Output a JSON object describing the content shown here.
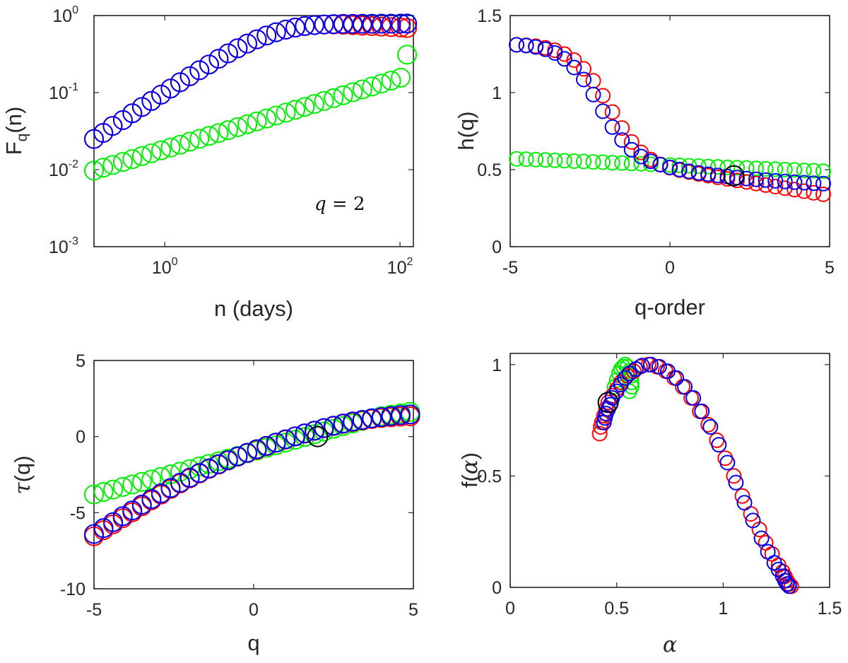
{
  "chart_data": [
    {
      "id": "fq",
      "type": "scatter",
      "xscale": "log",
      "yscale": "log",
      "xlim": [
        0.25,
        130
      ],
      "ylim": [
        0.001,
        1
      ],
      "xticks": [
        1,
        100
      ],
      "xtick_labels": [
        {
          "base": "10",
          "exp": "0"
        },
        {
          "base": "10",
          "exp": "2"
        }
      ],
      "yticks": [
        0.001,
        0.01,
        0.1,
        1
      ],
      "ytick_labels": [
        {
          "base": "10",
          "exp": "-3"
        },
        {
          "base": "10",
          "exp": "-2"
        },
        {
          "base": "10",
          "exp": "-1"
        },
        {
          "base": "10",
          "exp": "0"
        }
      ],
      "xlabel": "n (days)",
      "ylabel": {
        "main": "F",
        "sub": "q",
        "rest": "(n)"
      },
      "annotation": {
        "lhs": "q",
        "rhs": "= 2",
        "position": "bottom-right"
      },
      "series": [
        {
          "name": "green",
          "color": "#00ee00",
          "x": [
            0.25,
            0.3,
            0.36,
            0.44,
            0.53,
            0.64,
            0.77,
            0.93,
            1.12,
            1.35,
            1.63,
            1.97,
            2.38,
            2.87,
            3.46,
            4.17,
            5.03,
            6.07,
            7.33,
            8.84,
            10.7,
            12.9,
            15.5,
            18.7,
            22.6,
            27.3,
            32.9,
            39.7,
            47.9,
            57.8,
            69.7,
            84.1,
            101.5,
            115
          ],
          "y": [
            0.0097,
            0.0106,
            0.0115,
            0.0126,
            0.0137,
            0.015,
            0.0163,
            0.0178,
            0.0194,
            0.0211,
            0.0231,
            0.0251,
            0.0274,
            0.0299,
            0.0326,
            0.0356,
            0.0388,
            0.0423,
            0.0461,
            0.0503,
            0.0549,
            0.0599,
            0.0653,
            0.0712,
            0.0777,
            0.0847,
            0.0924,
            0.101,
            0.11,
            0.12,
            0.131,
            0.143,
            0.156,
            0.31
          ]
        },
        {
          "name": "red",
          "color": "#ff0000",
          "x": [
            0.25,
            0.3,
            0.36,
            0.44,
            0.53,
            0.64,
            0.77,
            0.93,
            1.12,
            1.35,
            1.63,
            1.97,
            2.38,
            2.87,
            3.46,
            4.17,
            5.03,
            6.07,
            7.33,
            8.84,
            10.7,
            12.9,
            15.5,
            18.7,
            22.6,
            27.3,
            32.9,
            39.7,
            47.9,
            57.8,
            69.7,
            84.1,
            101.5,
            115
          ],
          "y": [
            0.025,
            0.03,
            0.037,
            0.044,
            0.054,
            0.065,
            0.078,
            0.094,
            0.113,
            0.136,
            0.163,
            0.195,
            0.232,
            0.275,
            0.323,
            0.376,
            0.433,
            0.492,
            0.551,
            0.607,
            0.657,
            0.699,
            0.731,
            0.752,
            0.764,
            0.766,
            0.76,
            0.75,
            0.74,
            0.73,
            0.72,
            0.71,
            0.7,
            0.69
          ]
        },
        {
          "name": "blue",
          "color": "#0000ee",
          "x": [
            0.25,
            0.3,
            0.36,
            0.44,
            0.53,
            0.64,
            0.77,
            0.93,
            1.12,
            1.35,
            1.63,
            1.97,
            2.38,
            2.87,
            3.46,
            4.17,
            5.03,
            6.07,
            7.33,
            8.84,
            10.7,
            12.9,
            15.5,
            18.7,
            22.6,
            27.3,
            32.9,
            39.7,
            47.9,
            57.8,
            69.7,
            84.1,
            101.5,
            115
          ],
          "y": [
            0.025,
            0.03,
            0.037,
            0.044,
            0.054,
            0.065,
            0.078,
            0.094,
            0.113,
            0.136,
            0.163,
            0.195,
            0.232,
            0.275,
            0.323,
            0.376,
            0.433,
            0.492,
            0.551,
            0.607,
            0.657,
            0.699,
            0.731,
            0.752,
            0.767,
            0.775,
            0.779,
            0.781,
            0.782,
            0.783,
            0.784,
            0.785,
            0.786,
            0.787
          ]
        }
      ]
    },
    {
      "id": "hq",
      "type": "scatter",
      "xlim": [
        -5,
        5
      ],
      "ylim": [
        0,
        1.5
      ],
      "xticks": [
        -5,
        0,
        5
      ],
      "xtick_labels": [
        "-5",
        "0",
        "5"
      ],
      "yticks": [
        0,
        0.5,
        1,
        1.5
      ],
      "ytick_labels": [
        "0",
        "0.5",
        "1",
        "1.5"
      ],
      "xlabel": "q-order",
      "ylabel": "h(q)",
      "series": [
        {
          "name": "green",
          "color": "#00ee00",
          "x": [
            -4.8,
            -4.5,
            -4.2,
            -3.9,
            -3.6,
            -3.3,
            -3.0,
            -2.7,
            -2.4,
            -2.1,
            -1.8,
            -1.5,
            -1.2,
            -0.9,
            -0.6,
            -0.3,
            0.0,
            0.3,
            0.6,
            0.9,
            1.2,
            1.5,
            1.8,
            2.1,
            2.4,
            2.7,
            3.0,
            3.3,
            3.6,
            3.9,
            4.2,
            4.5,
            4.8
          ],
          "y": [
            0.57,
            0.568,
            0.565,
            0.563,
            0.56,
            0.558,
            0.555,
            0.553,
            0.55,
            0.548,
            0.545,
            0.543,
            0.54,
            0.538,
            0.535,
            0.533,
            0.53,
            0.528,
            0.525,
            0.523,
            0.52,
            0.518,
            0.515,
            0.513,
            0.51,
            0.508,
            0.505,
            0.503,
            0.5,
            0.498,
            0.495,
            0.493,
            0.49
          ]
        },
        {
          "name": "red",
          "color": "#ff0000",
          "x": [
            -4.8,
            -4.5,
            -4.2,
            -3.9,
            -3.6,
            -3.3,
            -3.0,
            -2.7,
            -2.4,
            -2.1,
            -1.8,
            -1.5,
            -1.2,
            -0.9,
            -0.6,
            -0.3,
            0.0,
            0.3,
            0.6,
            0.9,
            1.2,
            1.5,
            1.8,
            2.1,
            2.4,
            2.7,
            3.0,
            3.3,
            3.6,
            3.9,
            4.2,
            4.5,
            4.8
          ],
          "y": [
            1.31,
            1.307,
            1.301,
            1.291,
            1.275,
            1.25,
            1.211,
            1.154,
            1.077,
            0.98,
            0.874,
            0.77,
            0.68,
            0.612,
            0.565,
            0.534,
            0.513,
            0.497,
            0.484,
            0.472,
            0.461,
            0.45,
            0.44,
            0.43,
            0.42,
            0.41,
            0.4,
            0.39,
            0.38,
            0.37,
            0.36,
            0.35,
            0.34
          ]
        },
        {
          "name": "blue",
          "color": "#0000ee",
          "x": [
            -4.8,
            -4.5,
            -4.2,
            -3.9,
            -3.6,
            -3.3,
            -3.0,
            -2.7,
            -2.4,
            -2.1,
            -1.8,
            -1.5,
            -1.2,
            -0.9,
            -0.6,
            -0.3,
            0.0,
            0.3,
            0.6,
            0.9,
            1.2,
            1.5,
            1.8,
            2.1,
            2.4,
            2.7,
            3.0,
            3.3,
            3.6,
            3.9,
            4.2,
            4.5,
            4.8
          ],
          "y": [
            1.31,
            1.305,
            1.296,
            1.281,
            1.257,
            1.219,
            1.163,
            1.085,
            0.987,
            0.879,
            0.776,
            0.692,
            0.629,
            0.585,
            0.554,
            0.532,
            0.515,
            0.501,
            0.489,
            0.479,
            0.47,
            0.462,
            0.455,
            0.448,
            0.442,
            0.437,
            0.432,
            0.427,
            0.423,
            0.419,
            0.415,
            0.412,
            0.409
          ]
        },
        {
          "name": "marker",
          "color": "#000000",
          "x": [
            2
          ],
          "y": [
            0.46
          ]
        }
      ]
    },
    {
      "id": "tau",
      "type": "scatter",
      "xlim": [
        -5,
        5
      ],
      "ylim": [
        -10,
        5
      ],
      "xticks": [
        -5,
        0,
        5
      ],
      "xtick_labels": [
        "-5",
        "0",
        "5"
      ],
      "yticks": [
        -10,
        -5,
        0,
        5
      ],
      "ytick_labels": [
        "-10",
        "-5",
        "0",
        "5"
      ],
      "xlabel": "q",
      "ylabel": {
        "greek": "τ",
        "rest": "(q)"
      },
      "series": [
        {
          "name": "green",
          "color": "#00ee00",
          "x": [
            -5.0,
            -4.7,
            -4.4,
            -4.1,
            -3.8,
            -3.5,
            -3.2,
            -2.9,
            -2.6,
            -2.3,
            -2.0,
            -1.7,
            -1.4,
            -1.1,
            -0.8,
            -0.5,
            -0.2,
            0.1,
            0.4,
            0.7,
            1.0,
            1.3,
            1.6,
            1.9,
            2.2,
            2.5,
            2.8,
            3.1,
            3.4,
            3.7,
            4.0,
            4.3,
            4.6,
            4.9
          ],
          "y": [
            -3.8,
            -3.64,
            -3.48,
            -3.31,
            -3.15,
            -2.98,
            -2.82,
            -2.65,
            -2.48,
            -2.31,
            -2.14,
            -1.96,
            -1.79,
            -1.62,
            -1.45,
            -1.27,
            -1.1,
            -0.92,
            -0.74,
            -0.57,
            -0.39,
            -0.21,
            -0.03,
            0.15,
            0.33,
            0.51,
            0.69,
            0.86,
            1.03,
            1.2,
            1.34,
            1.44,
            1.53,
            1.62
          ]
        },
        {
          "name": "red",
          "color": "#ff0000",
          "x": [
            -5.0,
            -4.7,
            -4.4,
            -4.1,
            -3.8,
            -3.5,
            -3.2,
            -2.9,
            -2.6,
            -2.3,
            -2.0,
            -1.7,
            -1.4,
            -1.1,
            -0.8,
            -0.5,
            -0.2,
            0.1,
            0.4,
            0.7,
            1.0,
            1.3,
            1.6,
            1.9,
            2.2,
            2.5,
            2.8,
            3.1,
            3.4,
            3.7,
            4.0,
            4.3,
            4.6,
            4.9
          ],
          "y": [
            -6.55,
            -6.15,
            -5.76,
            -5.36,
            -4.97,
            -4.58,
            -4.19,
            -3.81,
            -3.44,
            -3.08,
            -2.74,
            -2.42,
            -2.12,
            -1.84,
            -1.57,
            -1.32,
            -1.08,
            -0.86,
            -0.63,
            -0.41,
            -0.2,
            0.01,
            0.2,
            0.38,
            0.55,
            0.7,
            0.84,
            0.96,
            1.06,
            1.15,
            1.22,
            1.27,
            1.31,
            1.33
          ]
        },
        {
          "name": "blue",
          "color": "#0000ee",
          "x": [
            -5.0,
            -4.7,
            -4.4,
            -4.1,
            -3.8,
            -3.5,
            -3.2,
            -2.9,
            -2.6,
            -2.3,
            -2.0,
            -1.7,
            -1.4,
            -1.1,
            -0.8,
            -0.5,
            -0.2,
            0.1,
            0.4,
            0.7,
            1.0,
            1.3,
            1.6,
            1.9,
            2.2,
            2.5,
            2.8,
            3.1,
            3.4,
            3.7,
            4.0,
            4.3,
            4.6,
            4.9
          ],
          "y": [
            -6.4,
            -6.01,
            -5.62,
            -5.23,
            -4.85,
            -4.47,
            -4.1,
            -3.73,
            -3.38,
            -3.03,
            -2.7,
            -2.39,
            -2.09,
            -1.81,
            -1.55,
            -1.3,
            -1.06,
            -0.83,
            -0.61,
            -0.39,
            -0.18,
            0.02,
            0.21,
            0.39,
            0.56,
            0.72,
            0.86,
            0.99,
            1.1,
            1.2,
            1.28,
            1.35,
            1.41,
            1.45
          ]
        },
        {
          "name": "marker",
          "color": "#000000",
          "x": [
            2
          ],
          "y": [
            0
          ]
        }
      ]
    },
    {
      "id": "falpha",
      "type": "scatter",
      "xlim": [
        0,
        1.5
      ],
      "ylim": [
        0,
        1.05
      ],
      "xticks": [
        0,
        0.5,
        1,
        1.5
      ],
      "xtick_labels": [
        "0",
        "0.5",
        "1",
        "1.5"
      ],
      "yticks": [
        0,
        0.5,
        1
      ],
      "ytick_labels": [
        "0",
        "0.5",
        "1"
      ],
      "xlabel": {
        "greek": "α"
      },
      "ylabel": {
        "main": "f(",
        "greek": "α",
        "rest": ")"
      },
      "series": [
        {
          "name": "green",
          "color": "#00ee00",
          "x": [
            0.47,
            0.48,
            0.49,
            0.5,
            0.51,
            0.52,
            0.53,
            0.54,
            0.55,
            0.56,
            0.57,
            0.57,
            0.57,
            0.56
          ],
          "y": [
            0.82,
            0.86,
            0.9,
            0.93,
            0.96,
            0.98,
            0.99,
            1.0,
            0.99,
            0.97,
            0.95,
            0.92,
            0.9,
            0.88
          ]
        },
        {
          "name": "red",
          "color": "#ff0000",
          "x": [
            0.42,
            0.425,
            0.43,
            0.44,
            0.45,
            0.46,
            0.48,
            0.5,
            0.52,
            0.55,
            0.58,
            0.61,
            0.65,
            0.69,
            0.73,
            0.77,
            0.81,
            0.85,
            0.89,
            0.93,
            0.97,
            1.01,
            1.05,
            1.09,
            1.13,
            1.17,
            1.2,
            1.23,
            1.26,
            1.28,
            1.29,
            1.3,
            1.31,
            1.32
          ],
          "y": [
            0.69,
            0.72,
            0.74,
            0.77,
            0.8,
            0.83,
            0.86,
            0.89,
            0.92,
            0.95,
            0.97,
            0.99,
            1.0,
            0.99,
            0.97,
            0.94,
            0.9,
            0.85,
            0.79,
            0.73,
            0.66,
            0.58,
            0.5,
            0.41,
            0.33,
            0.26,
            0.2,
            0.15,
            0.1,
            0.07,
            0.05,
            0.03,
            0.015,
            0.005
          ]
        },
        {
          "name": "blue",
          "color": "#0000ee",
          "x": [
            0.44,
            0.445,
            0.45,
            0.46,
            0.47,
            0.48,
            0.5,
            0.52,
            0.54,
            0.56,
            0.59,
            0.62,
            0.66,
            0.7,
            0.74,
            0.78,
            0.82,
            0.86,
            0.9,
            0.94,
            0.98,
            1.02,
            1.06,
            1.1,
            1.14,
            1.18,
            1.21,
            1.24,
            1.26,
            1.28,
            1.29,
            1.3,
            1.31
          ],
          "y": [
            0.74,
            0.76,
            0.78,
            0.8,
            0.82,
            0.85,
            0.88,
            0.91,
            0.94,
            0.96,
            0.98,
            0.995,
            1.0,
            0.99,
            0.97,
            0.94,
            0.9,
            0.85,
            0.79,
            0.72,
            0.64,
            0.56,
            0.47,
            0.38,
            0.3,
            0.22,
            0.16,
            0.11,
            0.08,
            0.05,
            0.03,
            0.015,
            0.005
          ]
        },
        {
          "name": "marker",
          "color": "#000000",
          "x": [
            0.46
          ],
          "y": [
            0.83
          ]
        }
      ]
    }
  ]
}
